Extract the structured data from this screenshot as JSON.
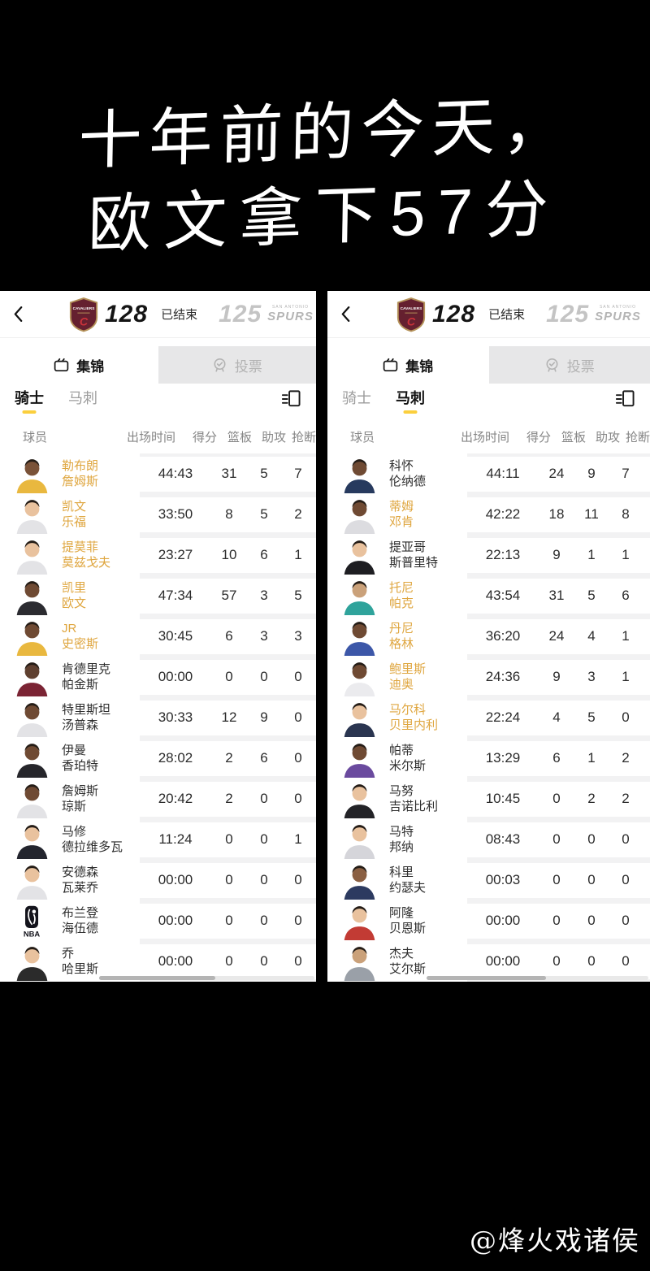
{
  "title": {
    "line1": "十年前的今天，",
    "line2": "欧文拿下57分"
  },
  "watermark": "@烽火戏诸侯",
  "colors": {
    "accent_yellow": "#fbcf3d",
    "starter_gold": "#dfa63f",
    "cavs_wine": "#65202f",
    "cavs_gold": "#b5935a",
    "inactive_gray": "#b3b3b3",
    "away_score_gray": "#c4c4c4"
  },
  "screens": [
    {
      "scoreboard": {
        "home_score": "128",
        "status": "已结束",
        "away_score": "125",
        "home_logo": "cavaliers-crest",
        "away_city": "SAN ANTONIO",
        "away_name": "SPURS"
      },
      "tabs": [
        {
          "label": "集锦",
          "icon": "clip-icon",
          "active": true
        },
        {
          "label": "投票",
          "icon": "vote-badge-icon",
          "active": false
        }
      ],
      "team_tabs": [
        {
          "label": "骑士",
          "selected": true
        },
        {
          "label": "马刺",
          "selected": false
        }
      ],
      "table": {
        "headers": [
          "球员",
          "出场时间",
          "得分",
          "篮板",
          "助攻"
        ],
        "clipped_header": "抢断",
        "rows": [
          {
            "name1": "勒布朗",
            "name2": "詹姆斯",
            "starter": true,
            "time": "44:43",
            "pts": "31",
            "reb": "5",
            "ast": "7",
            "avatar": {
              "skin": "#7a5238",
              "jersey": "#e9b83f"
            }
          },
          {
            "name1": "凯文",
            "name2": "乐福",
            "starter": true,
            "time": "33:50",
            "pts": "8",
            "reb": "5",
            "ast": "2",
            "avatar": {
              "skin": "#e9c29e",
              "jersey": "#e3e3e6"
            }
          },
          {
            "name1": "提莫菲",
            "name2": "莫兹戈夫",
            "starter": true,
            "time": "23:27",
            "pts": "10",
            "reb": "6",
            "ast": "1",
            "avatar": {
              "skin": "#e9c29e",
              "jersey": "#e3e3e6"
            }
          },
          {
            "name1": "凯里",
            "name2": "欧文",
            "starter": true,
            "time": "47:34",
            "pts": "57",
            "reb": "3",
            "ast": "5",
            "avatar": {
              "skin": "#6f4a33",
              "jersey": "#2b2b30"
            }
          },
          {
            "name1": "JR",
            "name2": "史密斯",
            "starter": true,
            "time": "30:45",
            "pts": "6",
            "reb": "3",
            "ast": "3",
            "avatar": {
              "skin": "#6f4a33",
              "jersey": "#e9b83f"
            }
          },
          {
            "name1": "肯德里克",
            "name2": "帕金斯",
            "starter": false,
            "time": "00:00",
            "pts": "0",
            "reb": "0",
            "ast": "0",
            "avatar": {
              "skin": "#5f4030",
              "jersey": "#7b2434"
            }
          },
          {
            "name1": "特里斯坦",
            "name2": "汤普森",
            "starter": false,
            "time": "30:33",
            "pts": "12",
            "reb": "9",
            "ast": "0",
            "avatar": {
              "skin": "#6f4a33",
              "jersey": "#e3e3e6"
            }
          },
          {
            "name1": "伊曼",
            "name2": "香珀特",
            "starter": false,
            "time": "28:02",
            "pts": "2",
            "reb": "6",
            "ast": "0",
            "avatar": {
              "skin": "#6f4a33",
              "jersey": "#26262b"
            }
          },
          {
            "name1": "詹姆斯",
            "name2": "琼斯",
            "starter": false,
            "time": "20:42",
            "pts": "2",
            "reb": "0",
            "ast": "0",
            "avatar": {
              "skin": "#6f4a33",
              "jersey": "#e3e3e6"
            }
          },
          {
            "name1": "马修",
            "name2": "德拉维多瓦",
            "starter": false,
            "time": "11:24",
            "pts": "0",
            "reb": "0",
            "ast": "1",
            "avatar": {
              "skin": "#e9c29e",
              "jersey": "#23252e"
            }
          },
          {
            "name1": "安德森",
            "name2": "瓦莱乔",
            "starter": false,
            "time": "00:00",
            "pts": "0",
            "reb": "0",
            "ast": "0",
            "avatar": {
              "skin": "#e9c29e",
              "jersey": "#e3e3e6"
            }
          },
          {
            "name1": "布兰登",
            "name2": "海伍德",
            "starter": false,
            "time": "00:00",
            "pts": "0",
            "reb": "0",
            "ast": "0",
            "avatar": {
              "type": "nba-logo"
            }
          },
          {
            "name1": "乔",
            "name2": "哈里斯",
            "starter": false,
            "time": "00:00",
            "pts": "0",
            "reb": "0",
            "ast": "0",
            "avatar": {
              "skin": "#e9c29e",
              "jersey": "#2b2b2b"
            }
          }
        ]
      }
    },
    {
      "scoreboard": {
        "home_score": "128",
        "status": "已结束",
        "away_score": "125",
        "home_logo": "cavaliers-crest",
        "away_city": "SAN ANTONIO",
        "away_name": "SPURS"
      },
      "tabs": [
        {
          "label": "集锦",
          "icon": "clip-icon",
          "active": true
        },
        {
          "label": "投票",
          "icon": "vote-badge-icon",
          "active": false
        }
      ],
      "team_tabs": [
        {
          "label": "骑士",
          "selected": false
        },
        {
          "label": "马刺",
          "selected": true
        }
      ],
      "table": {
        "headers": [
          "球员",
          "出场时间",
          "得分",
          "篮板",
          "助攻"
        ],
        "clipped_header": "抢断",
        "rows": [
          {
            "name1": "科怀",
            "name2": "伦纳德",
            "starter": false,
            "time": "44:11",
            "pts": "24",
            "reb": "9",
            "ast": "7",
            "avatar": {
              "skin": "#6f4a33",
              "jersey": "#273a5e"
            }
          },
          {
            "name1": "蒂姆",
            "name2": "邓肯",
            "starter": true,
            "time": "42:22",
            "pts": "18",
            "reb": "11",
            "ast": "8",
            "avatar": {
              "skin": "#6f4a33",
              "jersey": "#dcdce0"
            }
          },
          {
            "name1": "提亚哥",
            "name2": "斯普里特",
            "starter": false,
            "time": "22:13",
            "pts": "9",
            "reb": "1",
            "ast": "1",
            "avatar": {
              "skin": "#e9c29e",
              "jersey": "#1e1e22"
            }
          },
          {
            "name1": "托尼",
            "name2": "帕克",
            "starter": true,
            "time": "43:54",
            "pts": "31",
            "reb": "5",
            "ast": "6",
            "avatar": {
              "skin": "#caa17a",
              "jersey": "#2fa39b"
            }
          },
          {
            "name1": "丹尼",
            "name2": "格林",
            "starter": true,
            "time": "36:20",
            "pts": "24",
            "reb": "4",
            "ast": "1",
            "avatar": {
              "skin": "#6f4a33",
              "jersey": "#3c57a8"
            }
          },
          {
            "name1": "鲍里斯",
            "name2": "迪奥",
            "starter": true,
            "time": "24:36",
            "pts": "9",
            "reb": "3",
            "ast": "1",
            "avatar": {
              "skin": "#6f4a33",
              "jersey": "#ebebee"
            }
          },
          {
            "name1": "马尔科",
            "name2": "贝里内利",
            "starter": true,
            "time": "22:24",
            "pts": "4",
            "reb": "5",
            "ast": "0",
            "avatar": {
              "skin": "#e9c29e",
              "jersey": "#2a3550"
            }
          },
          {
            "name1": "帕蒂",
            "name2": "米尔斯",
            "starter": false,
            "time": "13:29",
            "pts": "6",
            "reb": "1",
            "ast": "2",
            "avatar": {
              "skin": "#6f4a33",
              "jersey": "#6a4a9e"
            }
          },
          {
            "name1": "马努",
            "name2": "吉诺比利",
            "starter": false,
            "time": "10:45",
            "pts": "0",
            "reb": "2",
            "ast": "2",
            "avatar": {
              "skin": "#e9c29e",
              "jersey": "#232327"
            }
          },
          {
            "name1": "马特",
            "name2": "邦纳",
            "starter": false,
            "time": "08:43",
            "pts": "0",
            "reb": "0",
            "ast": "0",
            "avatar": {
              "skin": "#e9c29e",
              "jersey": "#d5d5da"
            }
          },
          {
            "name1": "科里",
            "name2": "约瑟夫",
            "starter": false,
            "time": "00:03",
            "pts": "0",
            "reb": "0",
            "ast": "0",
            "avatar": {
              "skin": "#8a5f42",
              "jersey": "#2c3a60"
            }
          },
          {
            "name1": "阿隆",
            "name2": "贝恩斯",
            "starter": false,
            "time": "00:00",
            "pts": "0",
            "reb": "0",
            "ast": "0",
            "avatar": {
              "skin": "#e9c29e",
              "jersey": "#c23b34"
            }
          },
          {
            "name1": "杰夫",
            "name2": "艾尔斯",
            "starter": false,
            "time": "00:00",
            "pts": "0",
            "reb": "0",
            "ast": "0",
            "avatar": {
              "skin": "#caa17a",
              "jersey": "#9aa0a8"
            }
          }
        ]
      }
    }
  ]
}
